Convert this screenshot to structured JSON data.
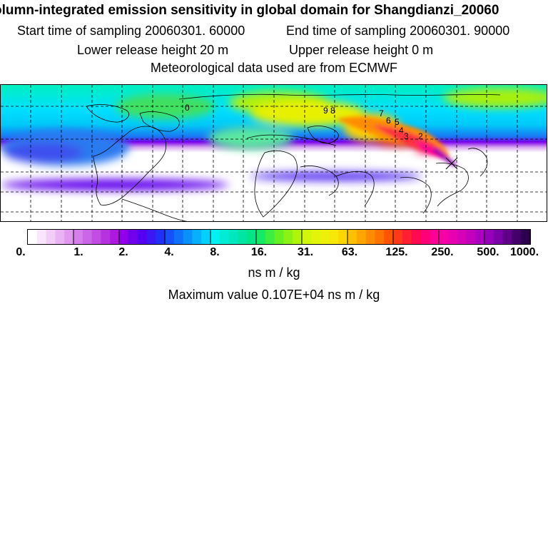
{
  "header": {
    "title": "olumn-integrated emission sensitivity in global domain for Shangdianzi_20060",
    "start_sampling": "Start time of sampling 20060301. 60000",
    "end_sampling": "End time of sampling 20060301. 90000",
    "lower_release": "Lower release height   20 m",
    "upper_release": "Upper release height    0 m",
    "met_data": "Meteorological data used are from ECMWF"
  },
  "map": {
    "contour_labels": [
      "0",
      "9",
      "8",
      "7",
      "6",
      "5",
      "4",
      "3",
      "2"
    ]
  },
  "legend": {
    "tick_labels": [
      "0.",
      "1.",
      "2.",
      "4.",
      "8.",
      "16.",
      "31.",
      "63.",
      "125.",
      "250.",
      "500.",
      "1000."
    ],
    "colors": [
      "#ffffff",
      "#fae6fc",
      "#f3ccf8",
      "#eab3f4",
      "#e199f0",
      "#d67fec",
      "#cc66e8",
      "#c24ce4",
      "#b833e0",
      "#ad19dc",
      "#9000e8",
      "#6f00ec",
      "#5500f0",
      "#3a17f4",
      "#2030f6",
      "#1550f8",
      "#0f70fa",
      "#0a90fb",
      "#06b0fc",
      "#03d0fd",
      "#00f2f0",
      "#00ecd5",
      "#00e8bd",
      "#00e5a2",
      "#00e585",
      "#14ea63",
      "#3ded40",
      "#66f020",
      "#8cf214",
      "#b0f40a",
      "#d0f60a",
      "#e2f40a",
      "#eeef0a",
      "#f8e80a",
      "#ffd700",
      "#ffc000",
      "#ffa600",
      "#ff8c00",
      "#ff7300",
      "#ff5500",
      "#ff3a1a",
      "#ff1f33",
      "#ff0a50",
      "#ff0078",
      "#ff0096",
      "#f700a5",
      "#e800b0",
      "#d600b8",
      "#c200be",
      "#ac00c0",
      "#9500bb",
      "#7c00a8",
      "#600088",
      "#44006a",
      "#2c004e"
    ],
    "unit": "ns m / kg",
    "maximum": "Maximum value  0.107E+04 ns m / kg"
  }
}
